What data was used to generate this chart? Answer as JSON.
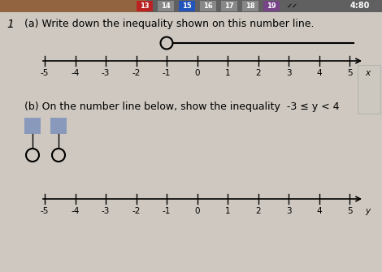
{
  "title_bar_numbers": [
    "13",
    "14",
    "15",
    "16",
    "17",
    "18",
    "19"
  ],
  "timer_text": "4:80",
  "question_number": "1",
  "part_a_text": "(a) Write down the inequality shown on this number line.",
  "part_b_text": "(b) On the number line below, show the inequality  -3 ≤ y < 4",
  "number_line_ticks": [
    -5,
    -4,
    -3,
    -2,
    -1,
    0,
    1,
    2,
    3,
    4,
    5
  ],
  "open_circle_a": -1,
  "bg_color": "#cec8c0",
  "nav_bg": "#606060",
  "highlight_13": "#bb2222",
  "highlight_15": "#2255bb",
  "highlight_19": "#774488",
  "nav_other": "#888888",
  "blue_square_color": "#8899bb",
  "right_panel_color": "#c8c4bc"
}
